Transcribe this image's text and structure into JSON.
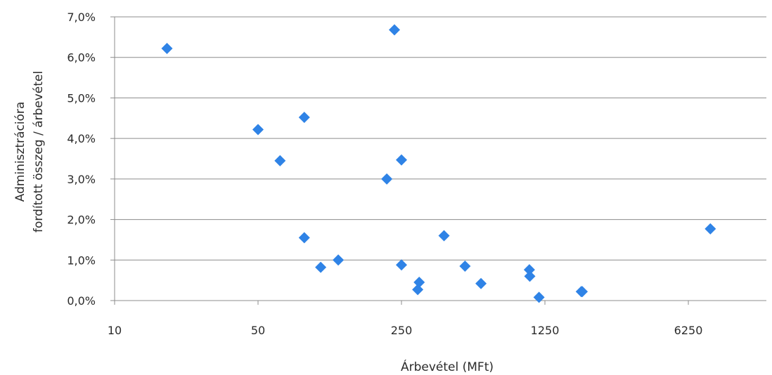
{
  "chart_data": {
    "type": "scatter",
    "xlabel": "Árbevétel (MFt)",
    "ylabel": [
      "Adminisztrációra",
      "fordított összeg / árbevétel"
    ],
    "x_scale": "log",
    "xlim": [
      10,
      15000
    ],
    "ylim": [
      0,
      7.0
    ],
    "x_ticks": [
      10,
      50,
      250,
      1250,
      6250
    ],
    "x_tick_labels": [
      "10",
      "50",
      "250",
      "1250",
      "6250"
    ],
    "y_ticks": [
      0,
      1,
      2,
      3,
      4,
      5,
      6,
      7
    ],
    "y_tick_labels": [
      "0,0%",
      "1,0%",
      "2,0%",
      "3,0%",
      "4,0%",
      "5,0%",
      "6,0%",
      "7,0%"
    ],
    "grid": "horizontal",
    "marker": "diamond",
    "marker_color": "#2F83E6",
    "points": [
      {
        "x": 18,
        "y": 6.22
      },
      {
        "x": 50,
        "y": 4.22
      },
      {
        "x": 64,
        "y": 3.45
      },
      {
        "x": 84,
        "y": 4.52
      },
      {
        "x": 84,
        "y": 1.55
      },
      {
        "x": 101,
        "y": 0.82
      },
      {
        "x": 123,
        "y": 1.0
      },
      {
        "x": 212,
        "y": 3.0
      },
      {
        "x": 231,
        "y": 6.68
      },
      {
        "x": 250,
        "y": 3.47
      },
      {
        "x": 250,
        "y": 0.88
      },
      {
        "x": 300,
        "y": 0.27
      },
      {
        "x": 305,
        "y": 0.45
      },
      {
        "x": 403,
        "y": 1.6
      },
      {
        "x": 510,
        "y": 0.85
      },
      {
        "x": 610,
        "y": 0.42
      },
      {
        "x": 1050,
        "y": 0.76
      },
      {
        "x": 1055,
        "y": 0.6
      },
      {
        "x": 1170,
        "y": 0.08
      },
      {
        "x": 1880,
        "y": 0.22
      },
      {
        "x": 1900,
        "y": 0.22
      },
      {
        "x": 8000,
        "y": 1.77
      }
    ]
  }
}
